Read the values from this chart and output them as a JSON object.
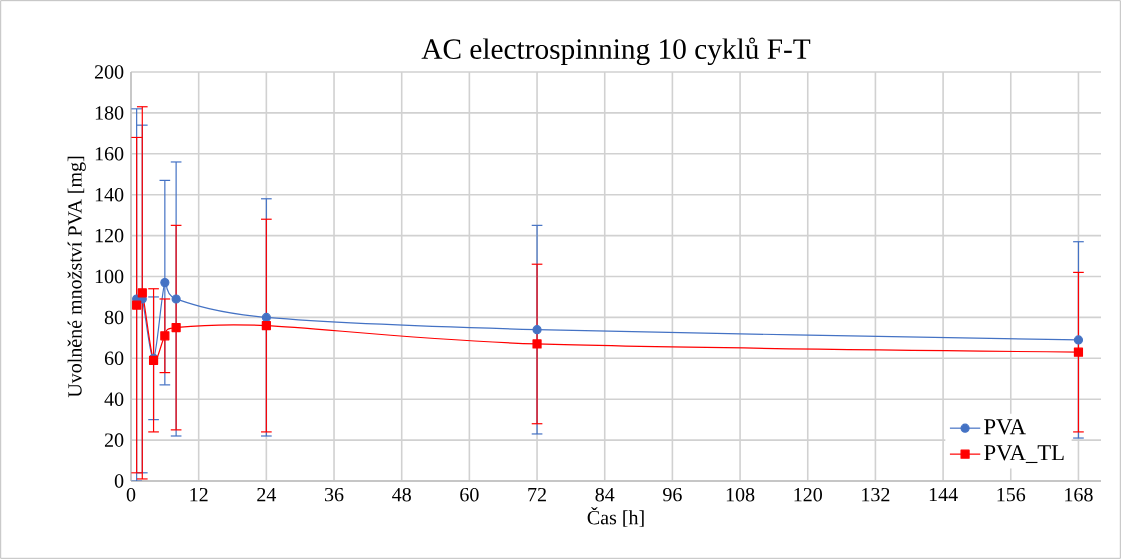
{
  "chart_data": {
    "type": "line",
    "title": "AC electrospinning 10 cyklů F-T",
    "xlabel": "Čas [h]",
    "ylabel": "Uvolněné množství PVA [mg]",
    "x": [
      1,
      2,
      4,
      6,
      8,
      24,
      72,
      168
    ],
    "xlim": [
      0,
      172
    ],
    "xticks": [
      0,
      12,
      24,
      36,
      48,
      60,
      72,
      84,
      96,
      108,
      120,
      132,
      144,
      156,
      168
    ],
    "ylim": [
      0,
      200
    ],
    "yticks": [
      0,
      20,
      40,
      60,
      80,
      100,
      120,
      140,
      160,
      180,
      200
    ],
    "grid": true,
    "legend": "bottom right",
    "line_style": "solid",
    "series": [
      {
        "name": "PVA",
        "color": "#4472c4",
        "marker": "circle",
        "values": [
          89,
          89,
          60,
          97,
          89,
          80,
          74,
          69
        ],
        "errors": [
          [
            0,
            182
          ],
          85,
          30,
          50,
          67,
          58,
          51,
          48
        ]
      },
      {
        "name": "PVA_TL",
        "color": "#ff0000",
        "marker": "square",
        "values": [
          86,
          92,
          59,
          71,
          75,
          76,
          67,
          63
        ],
        "errors": [
          82,
          91,
          35,
          18,
          50,
          52,
          39,
          39
        ]
      }
    ]
  }
}
